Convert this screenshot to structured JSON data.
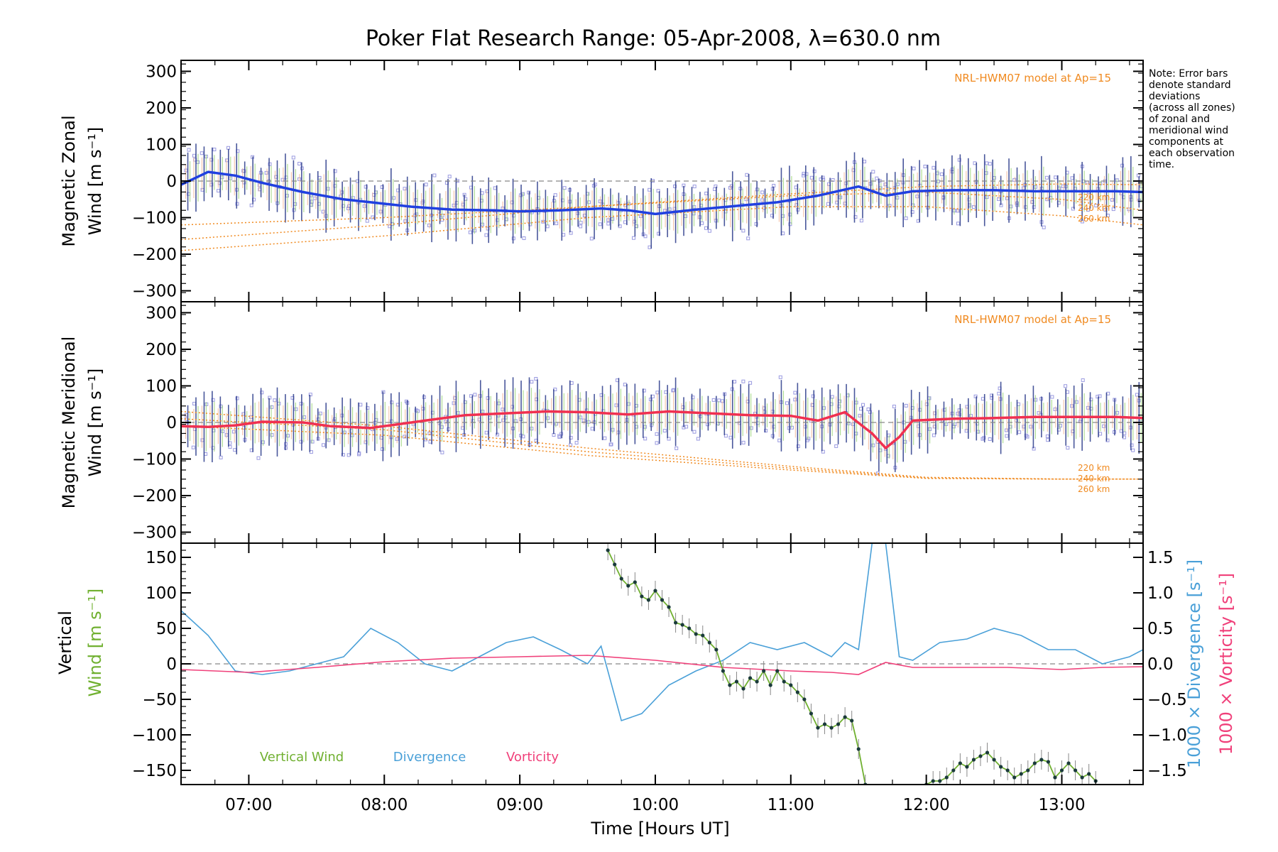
{
  "title": "Poker Flat Research Range: 05-Apr-2008, λ=630.0 nm",
  "note": [
    "Note: Error bars",
    "denote standard",
    "deviations",
    "(across all zones)",
    "of zonal and",
    "meridional wind",
    "components at",
    "each observation",
    "time."
  ],
  "colors": {
    "zonal": "#2040e0",
    "meridional": "#f03050",
    "model": "#f08a20",
    "scatter": "#9a9ae0",
    "vertical": "#70b030",
    "divergence": "#4aa0d8",
    "vorticity": "#f0407a"
  },
  "chart_data": [
    {
      "type": "line",
      "panel": "zonal",
      "ylabel_lines": [
        "Magnetic Zonal",
        "Wind [m s⁻¹]"
      ],
      "xlim": [
        6.5,
        13.6
      ],
      "ylim": [
        -330,
        330
      ],
      "yticks": [
        300,
        200,
        100,
        0,
        -100,
        -200,
        -300
      ],
      "ytick_labels": [
        "300",
        "200",
        "100",
        "0",
        "−100",
        "−200",
        "−300"
      ],
      "model_label": "NRL-HWM07 model at Ap=15",
      "model_levels": [
        "220 km",
        "240 km",
        "260 km"
      ],
      "series": [
        {
          "x": [
            6.5,
            6.7,
            6.9,
            7.1,
            7.4,
            7.7,
            7.9,
            8.2,
            8.5,
            8.8,
            9.0,
            9.3,
            9.6,
            9.8,
            10.0,
            10.3,
            10.6,
            10.9,
            11.2,
            11.5,
            11.7,
            11.9,
            12.2,
            12.5,
            12.8,
            13.1,
            13.4,
            13.6
          ],
          "y": [
            -10,
            25,
            15,
            -5,
            -30,
            -50,
            -58,
            -70,
            -78,
            -80,
            -83,
            -80,
            -75,
            -80,
            -90,
            -78,
            -68,
            -58,
            -40,
            -15,
            -40,
            -28,
            -25,
            -25,
            -28,
            -28,
            -28,
            -30
          ]
        }
      ],
      "model": [
        {
          "x": [
            6.5,
            8,
            9.5,
            11,
            12,
            13,
            13.6
          ],
          "y": [
            -120,
            -100,
            -70,
            -35,
            -15,
            -8,
            -10
          ]
        },
        {
          "x": [
            6.5,
            8,
            9.5,
            11,
            12,
            13,
            13.6
          ],
          "y": [
            -160,
            -120,
            -70,
            -40,
            -30,
            -50,
            -80
          ]
        },
        {
          "x": [
            6.5,
            8,
            9.5,
            11,
            12,
            13,
            13.6
          ],
          "y": [
            -190,
            -150,
            -100,
            -70,
            -70,
            -95,
            -120
          ]
        }
      ]
    },
    {
      "type": "line",
      "panel": "meridional",
      "ylabel_lines": [
        "Magnetic Meridional",
        "Wind [m s⁻¹]"
      ],
      "xlim": [
        6.5,
        13.6
      ],
      "ylim": [
        -330,
        330
      ],
      "yticks": [
        300,
        200,
        100,
        0,
        -100,
        -200,
        -300
      ],
      "ytick_labels": [
        "300",
        "200",
        "100",
        "0",
        "−100",
        "−200",
        "−300"
      ],
      "model_label": "NRL-HWM07 model at Ap=15",
      "model_levels": [
        "220 km",
        "240 km",
        "260 km"
      ],
      "series": [
        {
          "x": [
            6.5,
            6.7,
            6.9,
            7.1,
            7.4,
            7.6,
            7.9,
            8.1,
            8.3,
            8.6,
            8.9,
            9.2,
            9.5,
            9.8,
            10.1,
            10.4,
            10.7,
            11.0,
            11.2,
            11.4,
            11.6,
            11.7,
            11.8,
            11.9,
            12.2,
            12.5,
            12.8,
            13.1,
            13.4,
            13.6
          ],
          "y": [
            -10,
            -12,
            -8,
            2,
            0,
            -10,
            -15,
            -5,
            5,
            20,
            25,
            30,
            28,
            22,
            30,
            25,
            20,
            18,
            5,
            28,
            -30,
            -70,
            -40,
            5,
            10,
            12,
            15,
            15,
            15,
            12
          ]
        }
      ],
      "model": [
        {
          "x": [
            6.5,
            8,
            9.5,
            11,
            12,
            13,
            13.6
          ],
          "y": [
            30,
            -10,
            -70,
            -120,
            -150,
            -155,
            -155
          ]
        },
        {
          "x": [
            6.5,
            8,
            9.5,
            11,
            12,
            13,
            13.6
          ],
          "y": [
            10,
            -20,
            -80,
            -125,
            -152,
            -155,
            -155
          ]
        },
        {
          "x": [
            6.5,
            8,
            9.5,
            11,
            12,
            13,
            13.6
          ],
          "y": [
            -10,
            -35,
            -90,
            -130,
            -153,
            -155,
            -155
          ]
        }
      ]
    },
    {
      "type": "line",
      "panel": "vertical",
      "xlim": [
        6.5,
        13.6
      ],
      "ylim": [
        -170,
        170
      ],
      "yticks": [
        150,
        100,
        50,
        0,
        -50,
        -100,
        -150
      ],
      "ytick_labels": [
        "150",
        "100",
        "50",
        "0",
        "−50",
        "−100",
        "−150"
      ],
      "y2lim": [
        -1.7,
        1.7
      ],
      "y2ticks": [
        1.5,
        1.0,
        0.5,
        0.0,
        -0.5,
        -1.0,
        -1.5
      ],
      "y2tick_labels": [
        "1.5",
        "1.0",
        "0.5",
        "0.0",
        "−0.5",
        "−1.0",
        "−1.5"
      ],
      "xticks": [
        7,
        8,
        9,
        10,
        11,
        12,
        13
      ],
      "xtick_labels": [
        "07:00",
        "08:00",
        "09:00",
        "10:00",
        "11:00",
        "12:00",
        "13:00"
      ],
      "xlabel": "Time [Hours UT]",
      "ylabel_left": {
        "line1": "Vertical",
        "line2_a": "Wind ",
        "line2_b": "[m s⁻¹]"
      },
      "ylabel_right1": {
        "a": "1000 × Divergence ",
        "b": "[s⁻¹]"
      },
      "ylabel_right2": {
        "a": "1000 × Vorticity ",
        "b": "[s⁻¹]"
      },
      "legend": [
        "Vertical Wind",
        "Divergence",
        "Vorticity"
      ],
      "vertical_wind": {
        "x": [
          9.65,
          9.7,
          9.75,
          9.8,
          9.85,
          9.9,
          9.95,
          10.0,
          10.05,
          10.1,
          10.15,
          10.2,
          10.25,
          10.3,
          10.35,
          10.4,
          10.45,
          10.5,
          10.55,
          10.6,
          10.65,
          10.7,
          10.75,
          10.8,
          10.85,
          10.9,
          10.95,
          11.0,
          11.05,
          11.1,
          11.15,
          11.2,
          11.25,
          11.3,
          11.35,
          11.4,
          11.45,
          11.5,
          11.55
        ],
        "y": [
          160,
          140,
          120,
          110,
          115,
          95,
          90,
          103,
          90,
          80,
          58,
          55,
          50,
          42,
          40,
          30,
          20,
          -10,
          -30,
          -25,
          -35,
          -20,
          -25,
          -10,
          -30,
          -10,
          -25,
          -30,
          -40,
          -50,
          -70,
          -90,
          -85,
          -90,
          -85,
          -75,
          -80,
          -120,
          -170
        ]
      },
      "vertical_wind_late": {
        "x": [
          12.0,
          12.05,
          12.1,
          12.15,
          12.2,
          12.25,
          12.3,
          12.35,
          12.4,
          12.45,
          12.5,
          12.55,
          12.6,
          12.65,
          12.7,
          12.75,
          12.8,
          12.85,
          12.9,
          12.95,
          13.0,
          13.05,
          13.1,
          13.15,
          13.2,
          13.25
        ],
        "y": [
          -170,
          -165,
          -165,
          -160,
          -150,
          -140,
          -145,
          -135,
          -130,
          -125,
          -135,
          -145,
          -150,
          -160,
          -155,
          -150,
          -140,
          -135,
          -138,
          -160,
          -150,
          -140,
          -150,
          -160,
          -155,
          -165
        ]
      },
      "divergence": {
        "x": [
          6.5,
          6.7,
          6.9,
          7.1,
          7.3,
          7.5,
          7.7,
          7.9,
          8.1,
          8.3,
          8.5,
          8.7,
          8.9,
          9.1,
          9.3,
          9.5,
          9.6,
          9.75,
          9.9,
          10.1,
          10.3,
          10.5,
          10.7,
          10.9,
          11.1,
          11.3,
          11.4,
          11.5,
          11.6,
          11.7,
          11.8,
          11.9,
          12.1,
          12.3,
          12.5,
          12.7,
          12.9,
          13.1,
          13.3,
          13.5,
          13.6
        ],
        "y": [
          0.75,
          0.4,
          -0.1,
          -0.15,
          -0.1,
          0.0,
          0.1,
          0.5,
          0.3,
          0.0,
          -0.1,
          0.1,
          0.3,
          0.38,
          0.2,
          0.0,
          0.25,
          -0.8,
          -0.7,
          -0.3,
          -0.1,
          0.05,
          0.3,
          0.2,
          0.3,
          0.1,
          0.3,
          0.2,
          1.7,
          1.7,
          0.1,
          0.05,
          0.3,
          0.35,
          0.5,
          0.4,
          0.2,
          0.2,
          0.0,
          0.1,
          0.2
        ]
      },
      "vorticity": {
        "x": [
          6.5,
          7.0,
          7.5,
          8.0,
          8.5,
          9.0,
          9.5,
          10.0,
          10.5,
          11.0,
          11.3,
          11.5,
          11.7,
          11.9,
          12.2,
          12.6,
          13.0,
          13.3,
          13.6
        ],
        "y": [
          -0.08,
          -0.12,
          -0.05,
          0.03,
          0.08,
          0.1,
          0.12,
          0.05,
          -0.05,
          -0.1,
          -0.12,
          -0.15,
          0.02,
          -0.05,
          -0.05,
          -0.05,
          -0.08,
          -0.05,
          -0.04
        ]
      }
    }
  ]
}
